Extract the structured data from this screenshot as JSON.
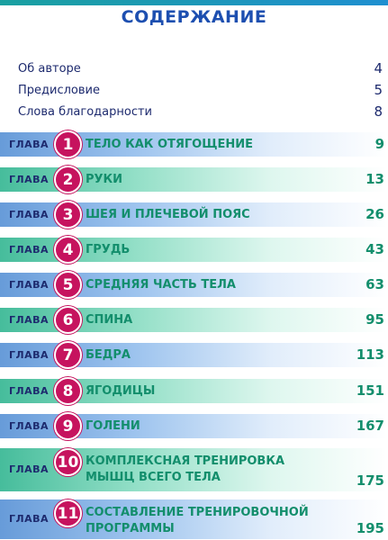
{
  "title": "СОДЕРЖАНИЕ",
  "intro": [
    {
      "label": "Об авторе",
      "page": "4"
    },
    {
      "label": "Предисловие",
      "page": "5"
    },
    {
      "label": "Слова благодарности",
      "page": "8"
    }
  ],
  "chapter_label": "ГЛАВА",
  "chapters": [
    {
      "num": "1",
      "lines": [
        "ТЕЛО КАК ОТЯГОЩЕНИЕ"
      ],
      "page": "9"
    },
    {
      "num": "2",
      "lines": [
        "РУКИ"
      ],
      "page": "13"
    },
    {
      "num": "3",
      "lines": [
        "ШЕЯ И ПЛЕЧЕВОЙ ПОЯС"
      ],
      "page": "26"
    },
    {
      "num": "4",
      "lines": [
        "ГРУДЬ"
      ],
      "page": "43"
    },
    {
      "num": "5",
      "lines": [
        "СРЕДНЯЯ ЧАСТЬ ТЕЛА"
      ],
      "page": "63"
    },
    {
      "num": "6",
      "lines": [
        "СПИНА"
      ],
      "page": "95"
    },
    {
      "num": "7",
      "lines": [
        "БЕДРА"
      ],
      "page": "113"
    },
    {
      "num": "8",
      "lines": [
        "ЯГОДИЦЫ"
      ],
      "page": "151"
    },
    {
      "num": "9",
      "lines": [
        "ГОЛЕНИ"
      ],
      "page": "167"
    },
    {
      "num": "10",
      "lines": [
        "КОМПЛЕКСНАЯ ТРЕНИРОВКА",
        "МЫШЦ ВСЕГО ТЕЛА"
      ],
      "page": "175"
    },
    {
      "num": "11",
      "lines": [
        "СОСТАВЛЕНИЕ ТРЕНИРОВОЧНОЙ",
        "ПРОГРАММЫ"
      ],
      "page": "195"
    }
  ],
  "colors": {
    "title": "#1d4fb0",
    "chapter_text": "#138e6c",
    "number_circle": "#c6135e",
    "band_blue": "#5f96d7",
    "band_green": "#3cb996"
  }
}
